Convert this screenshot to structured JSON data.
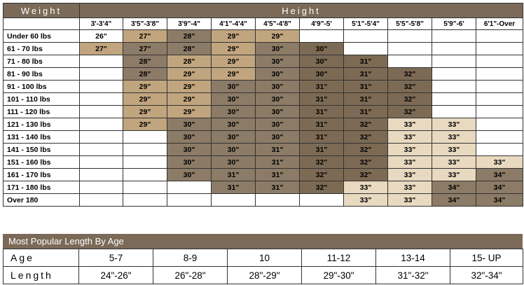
{
  "header": {
    "weight": "Weight",
    "height": "Height"
  },
  "heights": [
    "3'-3'4\"",
    "3'5\"-3'8\"",
    "3'9\"-4\"",
    "4'1\"-4'4\"",
    "4'5\"-4'8\"",
    "4'9\"-5'",
    "5'1\"-5'4\"",
    "5'5\"-5'8\"",
    "5'9\"-6'",
    "6'1\"-Over"
  ],
  "rows": [
    {
      "weight": "Under 60 lbs",
      "cells": [
        "26\"",
        "27\"",
        "28\"",
        "29\"",
        "29\"",
        "",
        "",
        "",
        "",
        ""
      ]
    },
    {
      "weight": "61 - 70 lbs",
      "cells": [
        "27\"",
        "27\"",
        "28\"",
        "29\"",
        "30\"",
        "30\"",
        "",
        "",
        "",
        ""
      ]
    },
    {
      "weight": "71 - 80 lbs",
      "cells": [
        "",
        "28\"",
        "28\"",
        "29\"",
        "30\"",
        "30\"",
        "31\"",
        "",
        "",
        ""
      ]
    },
    {
      "weight": "81 - 90 lbs",
      "cells": [
        "",
        "28\"",
        "29\"",
        "29\"",
        "30\"",
        "30\"",
        "31\"",
        "32\"",
        "",
        ""
      ]
    },
    {
      "weight": "91 - 100 lbs",
      "cells": [
        "",
        "29\"",
        "29\"",
        "30\"",
        "30\"",
        "31\"",
        "31\"",
        "32\"",
        "",
        ""
      ]
    },
    {
      "weight": "101 - 110 lbs",
      "cells": [
        "",
        "29\"",
        "29\"",
        "30\"",
        "30\"",
        "31\"",
        "31\"",
        "32\"",
        "",
        ""
      ]
    },
    {
      "weight": "111 - 120 lbs",
      "cells": [
        "",
        "29\"",
        "29\"",
        "30\"",
        "30\"",
        "31\"",
        "31\"",
        "32\"",
        "",
        ""
      ]
    },
    {
      "weight": "121 - 130 lbs",
      "cells": [
        "",
        "29\"",
        "30\"",
        "30\"",
        "30\"",
        "31\"",
        "32\"",
        "33\"",
        "33\"",
        ""
      ]
    },
    {
      "weight": "131 - 140 lbs",
      "cells": [
        "",
        "",
        "30\"",
        "30\"",
        "30\"",
        "31\"",
        "32\"",
        "33\"",
        "33\"",
        ""
      ]
    },
    {
      "weight": "141 - 150 lbs",
      "cells": [
        "",
        "",
        "30\"",
        "30\"",
        "31\"",
        "31\"",
        "32\"",
        "33\"",
        "33\"",
        ""
      ]
    },
    {
      "weight": "151 - 160 lbs",
      "cells": [
        "",
        "",
        "30\"",
        "30\"",
        "31\"",
        "32\"",
        "32\"",
        "33\"",
        "33\"",
        "33\""
      ]
    },
    {
      "weight": "161 - 170 lbs",
      "cells": [
        "",
        "",
        "30\"",
        "31\"",
        "31\"",
        "32\"",
        "32\"",
        "33\"",
        "33\"",
        "34\""
      ]
    },
    {
      "weight": "171 - 180 lbs",
      "cells": [
        "",
        "",
        "",
        "31\"",
        "31\"",
        "32\"",
        "33\"",
        "33\"",
        "34\"",
        "34\""
      ]
    },
    {
      "weight": "Over 180",
      "cells": [
        "",
        "",
        "",
        "",
        "",
        "",
        "33\"",
        "33\"",
        "34\"",
        "34\""
      ]
    }
  ],
  "shades": [
    [
      0,
      2,
      3,
      2,
      2,
      0,
      0,
      0,
      0,
      0
    ],
    [
      2,
      3,
      3,
      2,
      3,
      4,
      0,
      0,
      0,
      0
    ],
    [
      0,
      3,
      2,
      2,
      3,
      4,
      4,
      0,
      0,
      0
    ],
    [
      0,
      3,
      2,
      2,
      3,
      4,
      4,
      4,
      0,
      0
    ],
    [
      0,
      2,
      2,
      3,
      3,
      4,
      4,
      4,
      0,
      0
    ],
    [
      0,
      2,
      2,
      3,
      3,
      4,
      4,
      4,
      0,
      0
    ],
    [
      0,
      2,
      2,
      3,
      3,
      4,
      4,
      4,
      0,
      0
    ],
    [
      0,
      2,
      3,
      3,
      3,
      4,
      4,
      1,
      1,
      0
    ],
    [
      0,
      0,
      3,
      3,
      3,
      4,
      4,
      1,
      1,
      0
    ],
    [
      0,
      0,
      3,
      3,
      3,
      4,
      4,
      1,
      1,
      0
    ],
    [
      0,
      0,
      3,
      3,
      3,
      4,
      4,
      1,
      1,
      1
    ],
    [
      0,
      0,
      3,
      3,
      3,
      4,
      4,
      1,
      1,
      3
    ],
    [
      0,
      0,
      0,
      3,
      3,
      4,
      1,
      1,
      3,
      3
    ],
    [
      0,
      0,
      0,
      0,
      0,
      0,
      1,
      1,
      3,
      3
    ]
  ],
  "age_section": {
    "title": "Most Popular Length By Age",
    "age_label": "Age",
    "length_label": "Length",
    "ages": [
      "5-7",
      "8-9",
      "10",
      "11-12",
      "13-14",
      "15- UP"
    ],
    "lengths": [
      "24\"-26\"",
      "26\"-28\"",
      "28\"-29\"",
      "29\"-30\"",
      "31\"-32\"",
      "32\"-34\""
    ]
  },
  "colors": {
    "header": "#7b6a57",
    "light": "#e8d9c0",
    "tan": "#c1a57e",
    "brown": "#8c7b66",
    "dark": "#7c6a54"
  }
}
